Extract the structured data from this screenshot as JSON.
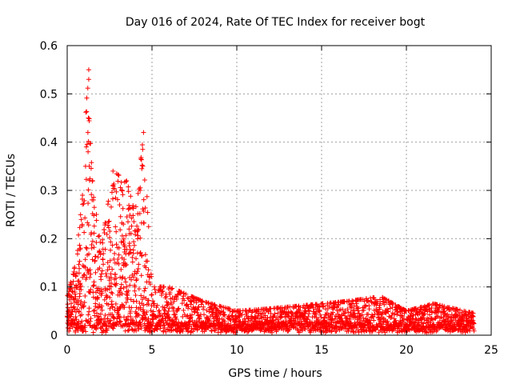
{
  "chart_data": {
    "type": "scatter",
    "title": "Day 016 of 2024, Rate Of TEC Index for receiver bogt",
    "xlabel": "GPS time / hours",
    "ylabel": "ROTI / TECUs",
    "xlim": [
      0,
      25
    ],
    "ylim": [
      0,
      0.6
    ],
    "xticks": [
      0,
      5,
      10,
      15,
      20,
      25
    ],
    "xtick_labels": [
      "0",
      "5",
      "10",
      "15",
      "20",
      "25"
    ],
    "yticks": [
      0,
      0.1,
      0.2,
      0.3,
      0.4,
      0.5,
      0.6
    ],
    "ytick_labels": [
      "0",
      "0.1",
      "0.2",
      "0.3",
      "0.4",
      "0.5",
      "0.6"
    ],
    "grid": true,
    "marker": "plus",
    "series": [
      {
        "name": "ROTI",
        "color": "#ff0000",
        "envelope": [
          {
            "x": 0.0,
            "max": 0.08
          },
          {
            "x": 0.5,
            "max": 0.15
          },
          {
            "x": 0.9,
            "max": 0.29
          },
          {
            "x": 1.2,
            "max": 0.55
          },
          {
            "x": 1.5,
            "max": 0.3
          },
          {
            "x": 2.0,
            "max": 0.18
          },
          {
            "x": 2.7,
            "max": 0.34
          },
          {
            "x": 3.5,
            "max": 0.32
          },
          {
            "x": 4.0,
            "max": 0.25
          },
          {
            "x": 4.5,
            "max": 0.42
          },
          {
            "x": 5.0,
            "max": 0.1
          },
          {
            "x": 6.0,
            "max": 0.1
          },
          {
            "x": 8.0,
            "max": 0.07
          },
          {
            "x": 10.0,
            "max": 0.05
          },
          {
            "x": 12.0,
            "max": 0.055
          },
          {
            "x": 15.0,
            "max": 0.065
          },
          {
            "x": 16.5,
            "max": 0.07
          },
          {
            "x": 18.5,
            "max": 0.08
          },
          {
            "x": 20.0,
            "max": 0.05
          },
          {
            "x": 21.6,
            "max": 0.065
          },
          {
            "x": 24.0,
            "max": 0.045
          }
        ],
        "baseline_min": 0.005,
        "highlights": [
          {
            "x": 1.27,
            "y": 0.55
          },
          {
            "x": 1.27,
            "y": 0.53
          },
          {
            "x": 1.25,
            "y": 0.45
          },
          {
            "x": 1.22,
            "y": 0.42
          },
          {
            "x": 1.23,
            "y": 0.38
          },
          {
            "x": 1.3,
            "y": 0.35
          },
          {
            "x": 1.5,
            "y": 0.32
          },
          {
            "x": 2.7,
            "y": 0.34
          },
          {
            "x": 3.5,
            "y": 0.32
          },
          {
            "x": 4.5,
            "y": 0.42
          },
          {
            "x": 4.45,
            "y": 0.385
          },
          {
            "x": 4.4,
            "y": 0.345
          },
          {
            "x": 4.3,
            "y": 0.3
          },
          {
            "x": 0.9,
            "y": 0.29
          },
          {
            "x": 12.0,
            "y": 0.055
          }
        ]
      }
    ]
  }
}
